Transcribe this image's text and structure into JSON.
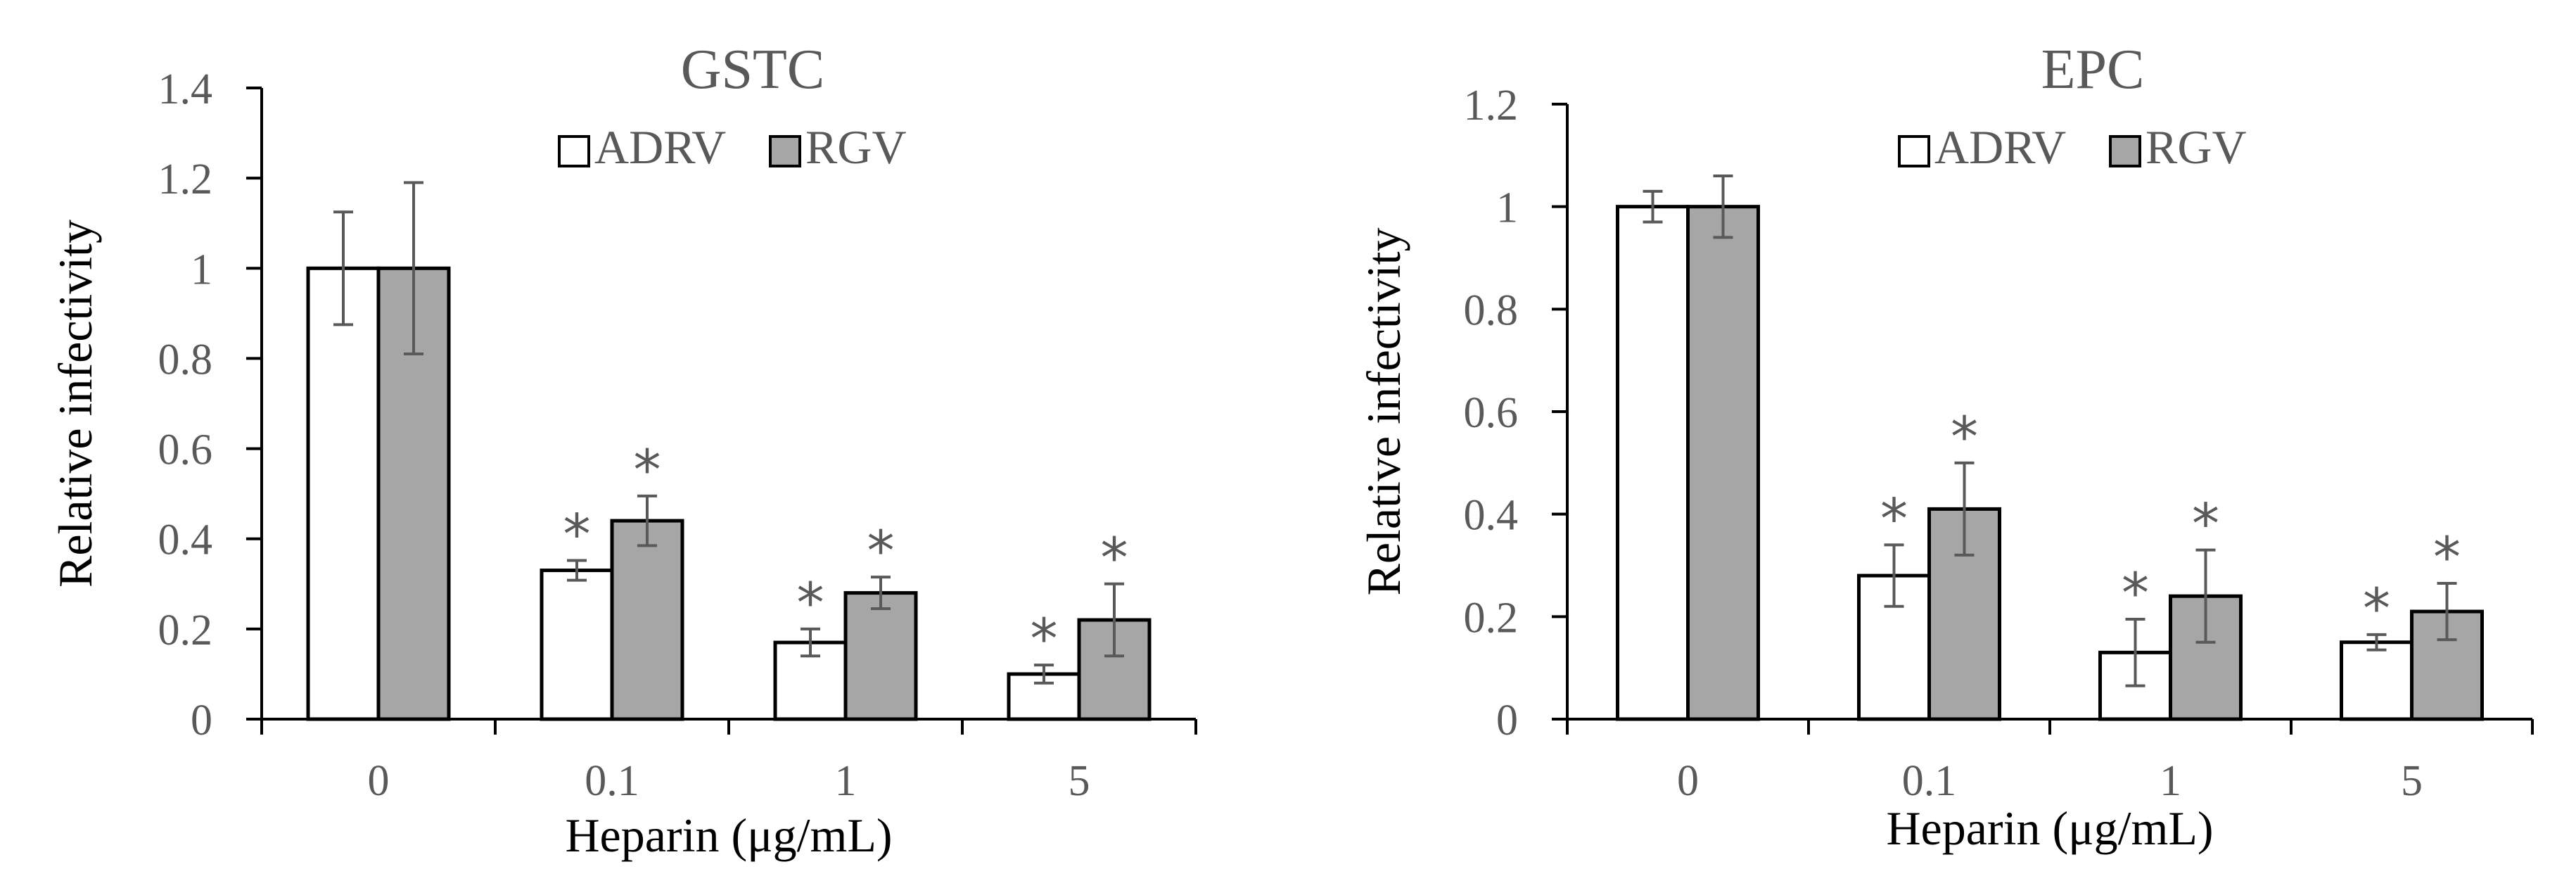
{
  "figure": {
    "background": "#ffffff"
  },
  "colors": {
    "adrv_fill": "#ffffff",
    "rgv_fill": "#a6a6a6",
    "bar_stroke": "#000000",
    "axis": "#000000",
    "error_bar": "#595959",
    "text": "#595959"
  },
  "chart_data": [
    {
      "type": "bar",
      "title": "GSTC",
      "xlabel": "Heparin (μg/mL)",
      "ylabel": "Relative infectivity",
      "ylim": [
        0,
        1.4
      ],
      "yticks": [
        0,
        0.2,
        0.4,
        0.6,
        0.8,
        1,
        1.2,
        1.4
      ],
      "ytick_labels": [
        "0",
        "0.2",
        "0.4",
        "0.6",
        "0.8",
        "1",
        "1.2",
        "1.4"
      ],
      "categories": [
        "0",
        "0.1",
        "1",
        "5"
      ],
      "legend_position": "top-center",
      "grid": false,
      "series": [
        {
          "name": "ADRV",
          "values": [
            1.0,
            0.33,
            0.17,
            0.1
          ],
          "errors": [
            0.125,
            0.022,
            0.03,
            0.02
          ],
          "significant": [
            false,
            true,
            true,
            true
          ]
        },
        {
          "name": "RGV",
          "values": [
            1.0,
            0.44,
            0.28,
            0.22
          ],
          "errors": [
            0.19,
            0.055,
            0.035,
            0.08
          ],
          "significant": [
            false,
            true,
            true,
            true
          ]
        }
      ],
      "significance_marker": "*"
    },
    {
      "type": "bar",
      "title": "EPC",
      "xlabel": "Heparin (μg/mL)",
      "ylabel": "Relative infectivity",
      "ylim": [
        0,
        1.2
      ],
      "yticks": [
        0,
        0.2,
        0.4,
        0.6,
        0.8,
        1,
        1.2
      ],
      "ytick_labels": [
        "0",
        "0.2",
        "0.4",
        "0.6",
        "0.8",
        "1",
        "1.2"
      ],
      "categories": [
        "0",
        "0.1",
        "1",
        "5"
      ],
      "legend_position": "top-center",
      "grid": false,
      "series": [
        {
          "name": "ADRV",
          "values": [
            1.0,
            0.28,
            0.13,
            0.15
          ],
          "errors": [
            0.03,
            0.06,
            0.065,
            0.015
          ],
          "significant": [
            false,
            true,
            true,
            true
          ]
        },
        {
          "name": "RGV",
          "values": [
            1.0,
            0.41,
            0.24,
            0.21
          ],
          "errors": [
            0.06,
            0.09,
            0.09,
            0.055
          ],
          "significant": [
            false,
            true,
            true,
            true
          ]
        }
      ],
      "significance_marker": "*"
    }
  ]
}
